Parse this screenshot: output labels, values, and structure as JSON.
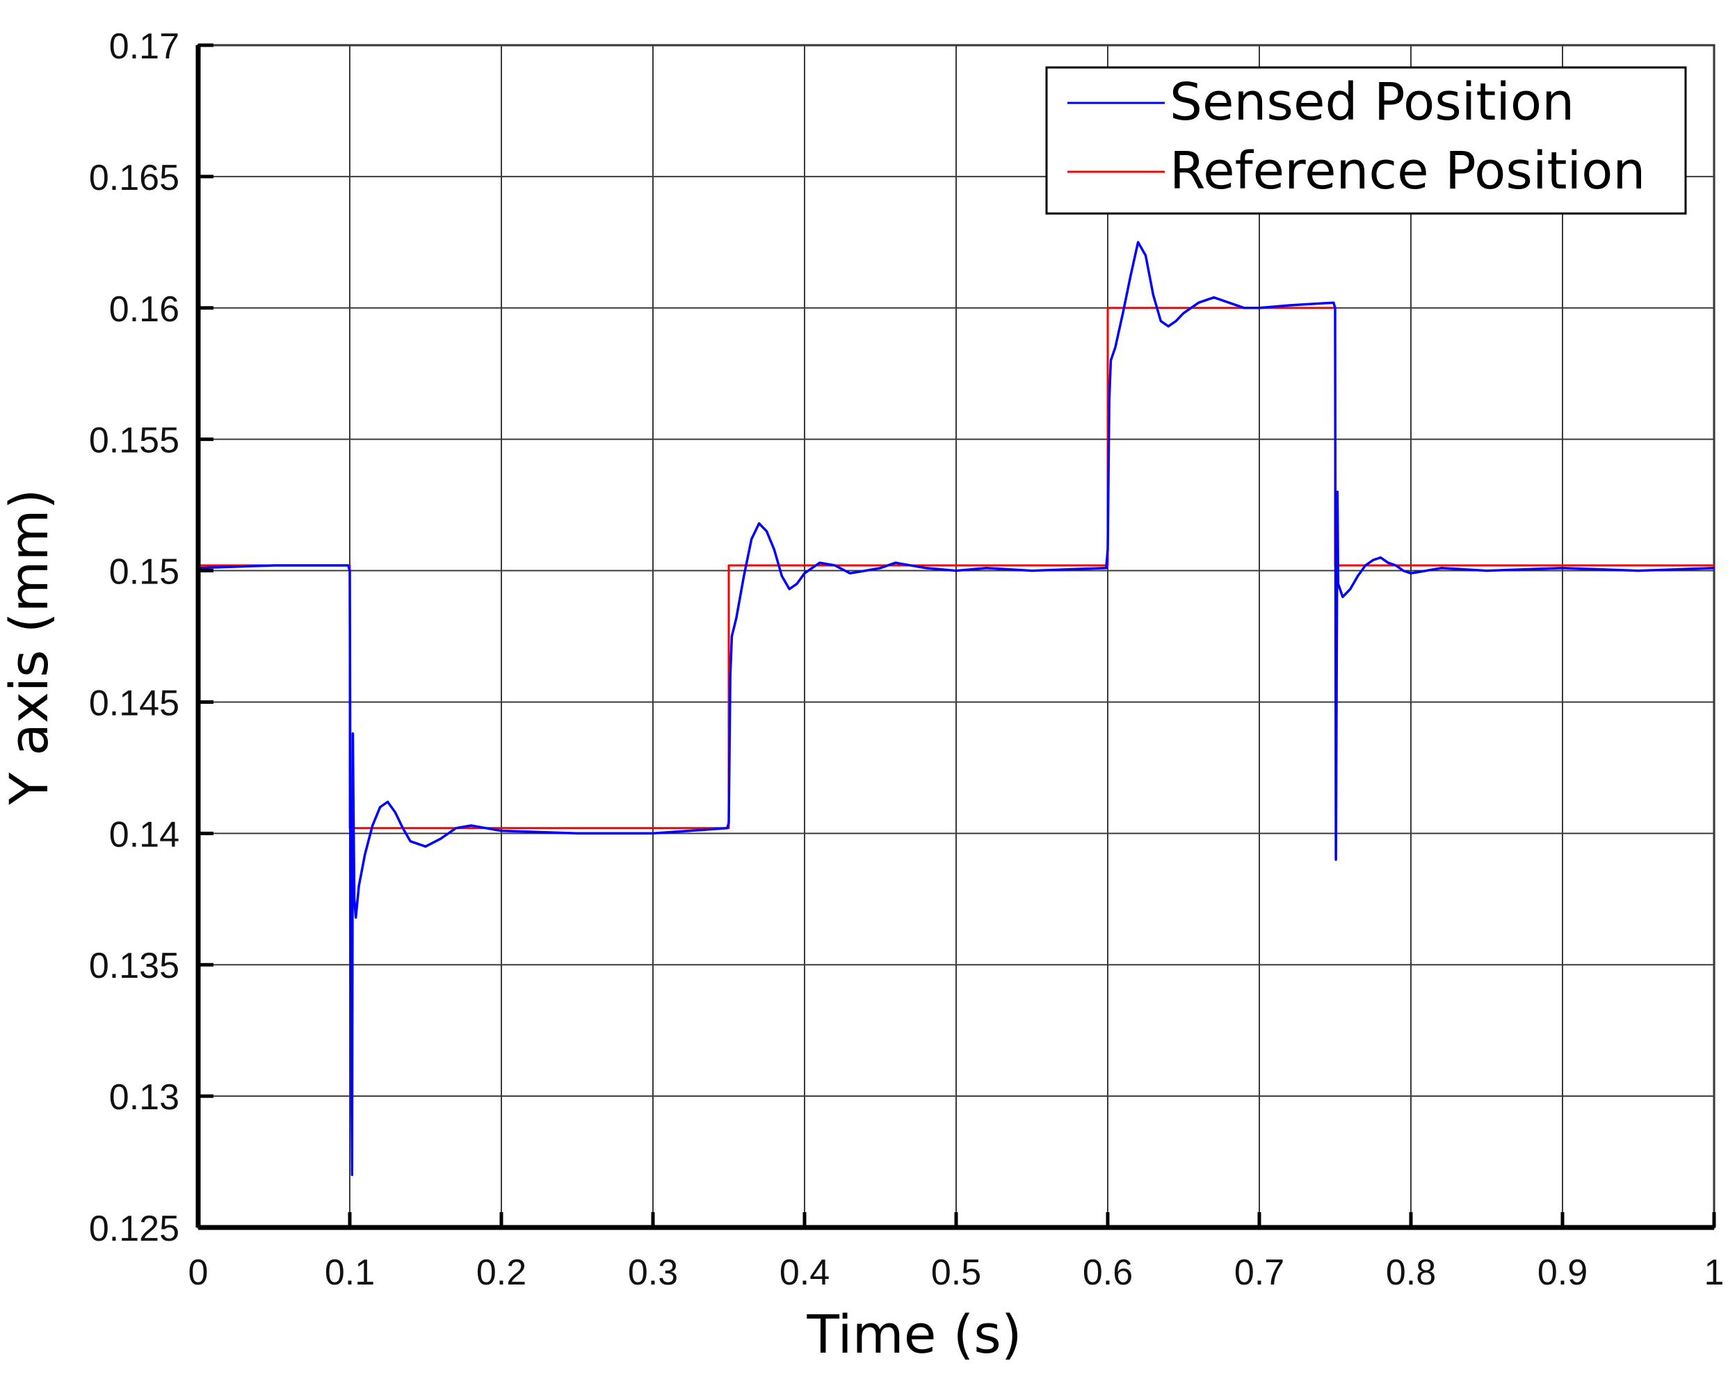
{
  "chart_data": {
    "type": "line",
    "title": "",
    "xlabel": "Time (s)",
    "ylabel": "Y axis (mm)",
    "xlim": [
      0,
      1
    ],
    "ylim": [
      0.125,
      0.17
    ],
    "x_ticks": [
      0,
      0.1,
      0.2,
      0.3,
      0.4,
      0.5,
      0.6,
      0.7,
      0.8,
      0.9,
      1
    ],
    "x_tick_labels": [
      "0",
      "0.1",
      "0.2",
      "0.3",
      "0.4",
      "0.5",
      "0.6",
      "0.7",
      "0.8",
      "0.9",
      "1"
    ],
    "y_ticks": [
      0.125,
      0.13,
      0.135,
      0.14,
      0.145,
      0.15,
      0.155,
      0.16,
      0.165,
      0.17
    ],
    "y_tick_labels": [
      "0.125",
      "0.13",
      "0.135",
      "0.14",
      "0.145",
      "0.15",
      "0.155",
      "0.16",
      "0.165",
      "0.17"
    ],
    "grid": true,
    "legend_position": "top-right",
    "series": [
      {
        "name": "Sensed Position",
        "color": "#0000ff",
        "x": [
          0,
          0.05,
          0.099,
          0.1,
          0.1005,
          0.1015,
          0.102,
          0.103,
          0.104,
          0.106,
          0.11,
          0.115,
          0.12,
          0.125,
          0.13,
          0.135,
          0.14,
          0.15,
          0.16,
          0.17,
          0.18,
          0.19,
          0.2,
          0.25,
          0.3,
          0.349,
          0.35,
          0.351,
          0.352,
          0.355,
          0.36,
          0.365,
          0.37,
          0.375,
          0.38,
          0.385,
          0.39,
          0.395,
          0.4,
          0.41,
          0.42,
          0.43,
          0.44,
          0.45,
          0.46,
          0.48,
          0.5,
          0.52,
          0.55,
          0.599,
          0.6,
          0.601,
          0.602,
          0.605,
          0.61,
          0.615,
          0.62,
          0.625,
          0.63,
          0.635,
          0.64,
          0.645,
          0.65,
          0.66,
          0.67,
          0.68,
          0.69,
          0.7,
          0.72,
          0.749,
          0.75,
          0.7505,
          0.7515,
          0.752,
          0.755,
          0.76,
          0.765,
          0.77,
          0.775,
          0.78,
          0.785,
          0.79,
          0.795,
          0.8,
          0.81,
          0.82,
          0.85,
          0.9,
          0.95,
          1.0
        ],
        "y": [
          0.1501,
          0.1502,
          0.1502,
          0.15,
          0.137,
          0.127,
          0.1438,
          0.1375,
          0.1368,
          0.138,
          0.1392,
          0.1403,
          0.141,
          0.1412,
          0.1408,
          0.1402,
          0.1397,
          0.1395,
          0.1398,
          0.1402,
          0.1403,
          0.1402,
          0.1401,
          0.14,
          0.14,
          0.1402,
          0.1404,
          0.146,
          0.1475,
          0.1482,
          0.1498,
          0.1512,
          0.1518,
          0.1515,
          0.1508,
          0.1498,
          0.1493,
          0.1495,
          0.1499,
          0.1503,
          0.1502,
          0.1499,
          0.15,
          0.1501,
          0.1503,
          0.1501,
          0.15,
          0.1501,
          0.15,
          0.1501,
          0.1508,
          0.1565,
          0.158,
          0.1585,
          0.1598,
          0.1612,
          0.1625,
          0.162,
          0.1605,
          0.1595,
          0.1593,
          0.1595,
          0.1598,
          0.1602,
          0.1604,
          0.1602,
          0.16,
          0.16,
          0.1601,
          0.1602,
          0.16,
          0.139,
          0.153,
          0.1495,
          0.149,
          0.1493,
          0.1498,
          0.1502,
          0.1504,
          0.1505,
          0.1503,
          0.1502,
          0.15,
          0.1499,
          0.15,
          0.1501,
          0.15,
          0.1501,
          0.15,
          0.1501
        ]
      },
      {
        "name": "Reference Position",
        "color": "#ff0000",
        "x": [
          0,
          0.1,
          0.1,
          0.35,
          0.35,
          0.6,
          0.6,
          0.75,
          0.75,
          1.0
        ],
        "y": [
          0.1502,
          0.1502,
          0.1402,
          0.1402,
          0.1502,
          0.1502,
          0.16,
          0.16,
          0.1502,
          0.1502
        ]
      }
    ]
  }
}
